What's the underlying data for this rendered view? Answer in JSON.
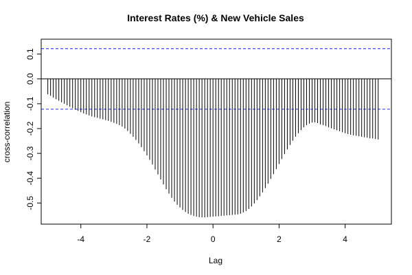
{
  "chart_data": {
    "type": "bar",
    "title": "Interest Rates (%) & New Vehicle Sales",
    "xlabel": "Lag",
    "ylabel": "cross-correlation",
    "xlim": [
      -5.2,
      5.4
    ],
    "ylim": [
      -0.585,
      0.16
    ],
    "x_ticks": [
      -4,
      -2,
      0,
      2,
      4
    ],
    "x_tick_labels": [
      "-4",
      "-2",
      "0",
      "2",
      "4"
    ],
    "y_ticks": [
      -0.5,
      -0.4,
      -0.3,
      -0.2,
      -0.1,
      0.0,
      0.1
    ],
    "y_tick_labels": [
      "-0.5",
      "-0.4",
      "-0.3",
      "-0.2",
      "-0.1",
      "0.0",
      "0.1"
    ],
    "zero_line": 0,
    "confidence_bounds": [
      0.122,
      -0.122
    ],
    "bound_color": "#4040ff",
    "series": [
      {
        "x": [
          -5.0,
          -4.9167,
          -4.8333,
          -4.75,
          -4.6667,
          -4.5833,
          -4.5,
          -4.4167,
          -4.3333,
          -4.25,
          -4.1667,
          -4.0833,
          -4.0,
          -3.9167,
          -3.8333,
          -3.75,
          -3.6667,
          -3.5833,
          -3.5,
          -3.4167,
          -3.3333,
          -3.25,
          -3.1667,
          -3.0833,
          -3.0,
          -2.9167,
          -2.8333,
          -2.75,
          -2.6667,
          -2.5833,
          -2.5,
          -2.4167,
          -2.3333,
          -2.25,
          -2.1667,
          -2.0833,
          -2.0,
          -1.9167,
          -1.8333,
          -1.75,
          -1.6667,
          -1.5833,
          -1.5,
          -1.4167,
          -1.3333,
          -1.25,
          -1.1667,
          -1.0833,
          -1.0,
          -0.9167,
          -0.8333,
          -0.75,
          -0.6667,
          -0.5833,
          -0.5,
          -0.4167,
          -0.3333,
          -0.25,
          -0.1667,
          -0.0833,
          0.0,
          0.0833,
          0.1667,
          0.25,
          0.3333,
          0.4167,
          0.5,
          0.5833,
          0.6667,
          0.75,
          0.8333,
          0.9167,
          1.0,
          1.0833,
          1.1667,
          1.25,
          1.3333,
          1.4167,
          1.5,
          1.5833,
          1.6667,
          1.75,
          1.8333,
          1.9167,
          2.0,
          2.0833,
          2.1667,
          2.25,
          2.3333,
          2.4167,
          2.5,
          2.5833,
          2.6667,
          2.75,
          2.8333,
          2.9167,
          3.0,
          3.0833,
          3.1667,
          3.25,
          3.3333,
          3.4167,
          3.5,
          3.5833,
          3.6667,
          3.75,
          3.8333,
          3.9167,
          4.0,
          4.0833,
          4.1667,
          4.25,
          4.3333,
          4.4167,
          4.5,
          4.5833,
          4.6667,
          4.75,
          4.8333,
          4.9167,
          5.0
        ],
        "values": [
          -0.062,
          -0.068,
          -0.075,
          -0.082,
          -0.088,
          -0.094,
          -0.1,
          -0.106,
          -0.112,
          -0.118,
          -0.124,
          -0.129,
          -0.134,
          -0.139,
          -0.143,
          -0.147,
          -0.151,
          -0.154,
          -0.157,
          -0.16,
          -0.163,
          -0.166,
          -0.169,
          -0.173,
          -0.177,
          -0.181,
          -0.186,
          -0.192,
          -0.2,
          -0.21,
          -0.221,
          -0.233,
          -0.246,
          -0.26,
          -0.275,
          -0.291,
          -0.308,
          -0.326,
          -0.345,
          -0.365,
          -0.385,
          -0.405,
          -0.425,
          -0.444,
          -0.462,
          -0.479,
          -0.494,
          -0.507,
          -0.518,
          -0.528,
          -0.536,
          -0.543,
          -0.548,
          -0.552,
          -0.555,
          -0.557,
          -0.558,
          -0.558,
          -0.557,
          -0.556,
          -0.555,
          -0.554,
          -0.553,
          -0.552,
          -0.551,
          -0.55,
          -0.549,
          -0.548,
          -0.547,
          -0.546,
          -0.543,
          -0.538,
          -0.532,
          -0.524,
          -0.514,
          -0.502,
          -0.488,
          -0.473,
          -0.457,
          -0.44,
          -0.422,
          -0.403,
          -0.383,
          -0.363,
          -0.343,
          -0.323,
          -0.303,
          -0.284,
          -0.266,
          -0.249,
          -0.233,
          -0.219,
          -0.206,
          -0.195,
          -0.186,
          -0.18,
          -0.176,
          -0.175,
          -0.178,
          -0.184,
          -0.186,
          -0.19,
          -0.195,
          -0.199,
          -0.203,
          -0.207,
          -0.211,
          -0.215,
          -0.219,
          -0.222,
          -0.225,
          -0.227,
          -0.229,
          -0.231,
          -0.233,
          -0.235,
          -0.237,
          -0.239,
          -0.24,
          -0.242,
          -0.244
        ]
      }
    ]
  }
}
